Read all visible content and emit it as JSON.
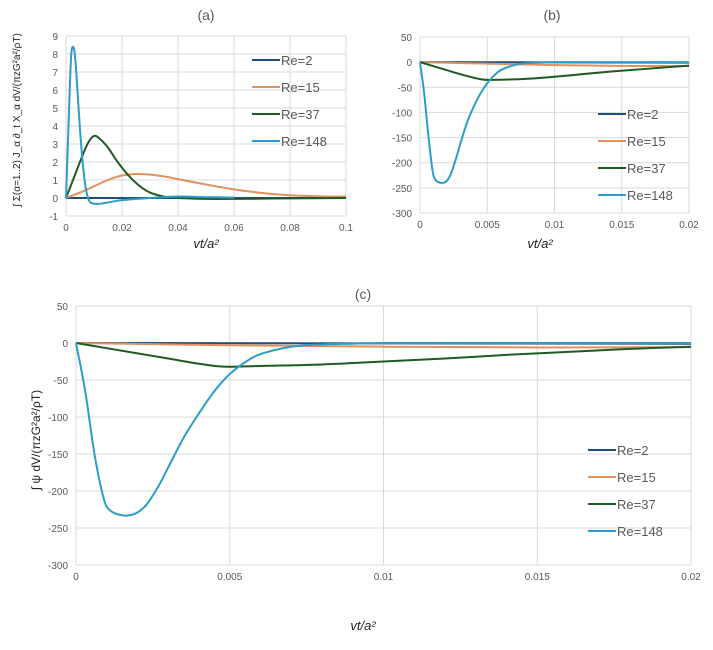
{
  "chart_data": [
    {
      "id": "a",
      "type": "line",
      "title": "(a)",
      "xlabel": "vt/a²",
      "ylabel": "∫ Σ(α=1..2) J_α ∂_t X_α dV/(πzG²a²/ρT)",
      "xlim": [
        0,
        0.1
      ],
      "ylim": [
        -1,
        9
      ],
      "xticks": [
        "0",
        "0.02",
        "0.04",
        "0.06",
        "0.08",
        "0.1"
      ],
      "xtick_values": [
        0,
        0.02,
        0.04,
        0.06,
        0.08,
        0.1
      ],
      "yticks": [
        "-1",
        "0",
        "1",
        "2",
        "3",
        "4",
        "5",
        "6",
        "7",
        "8",
        "9"
      ],
      "ytick_values": [
        -1,
        0,
        1,
        2,
        3,
        4,
        5,
        6,
        7,
        8,
        9
      ],
      "grid": true,
      "legend_position": "top-right",
      "series": [
        {
          "name": "Re=2",
          "color": "#1f4e79",
          "x": [
            0,
            0.02,
            0.05,
            0.1
          ],
          "y": [
            0,
            0,
            0,
            0
          ]
        },
        {
          "name": "Re=15",
          "color": "#e0915e",
          "x": [
            0,
            0.005,
            0.01,
            0.015,
            0.02,
            0.025,
            0.03,
            0.035,
            0.04,
            0.05,
            0.06,
            0.07,
            0.08,
            0.09,
            0.1
          ],
          "y": [
            0,
            0.3,
            0.65,
            1.0,
            1.25,
            1.33,
            1.3,
            1.2,
            1.05,
            0.75,
            0.48,
            0.28,
            0.15,
            0.1,
            0.08
          ]
        },
        {
          "name": "Re=37",
          "color": "#1e5a23",
          "x": [
            0,
            0.003,
            0.006,
            0.008,
            0.01,
            0.012,
            0.015,
            0.018,
            0.022,
            0.026,
            0.03,
            0.035,
            0.04,
            0.05,
            0.06,
            0.08,
            0.1
          ],
          "y": [
            0,
            1.2,
            2.4,
            3.1,
            3.45,
            3.3,
            2.8,
            2.1,
            1.3,
            0.7,
            0.3,
            0.08,
            0.0,
            -0.05,
            -0.05,
            -0.02,
            0
          ]
        },
        {
          "name": "Re=148",
          "color": "#2b9ec7",
          "x": [
            0,
            0.001,
            0.0018,
            0.0025,
            0.0032,
            0.004,
            0.005,
            0.006,
            0.007,
            0.008,
            0.009,
            0.011,
            0.013,
            0.016,
            0.02,
            0.03,
            0.04,
            0.05,
            0.06
          ],
          "y": [
            0,
            4.5,
            7.8,
            8.4,
            7.9,
            6.2,
            3.8,
            1.9,
            0.6,
            -0.05,
            -0.28,
            -0.33,
            -0.3,
            -0.22,
            -0.12,
            0.0,
            0.08,
            0.05,
            0.02
          ]
        }
      ]
    },
    {
      "id": "b",
      "type": "line",
      "title": "(b)",
      "xlabel": "vt/a²",
      "ylabel": "",
      "xlim": [
        0,
        0.02
      ],
      "ylim": [
        -300,
        50
      ],
      "xticks": [
        "0",
        "0.005",
        "0.01",
        "0.015",
        "0.02"
      ],
      "xtick_values": [
        0,
        0.005,
        0.01,
        0.015,
        0.02
      ],
      "yticks": [
        "-300",
        "-250",
        "-200",
        "-150",
        "-100",
        "-50",
        "0",
        "50"
      ],
      "ytick_values": [
        -300,
        -250,
        -200,
        -150,
        -100,
        -50,
        0,
        50
      ],
      "grid": true,
      "legend_position": "bottom-right",
      "series": [
        {
          "name": "Re=2",
          "color": "#1f4e79",
          "x": [
            0,
            0.01,
            0.02
          ],
          "y": [
            0,
            -0.5,
            -1
          ]
        },
        {
          "name": "Re=15",
          "color": "#e0915e",
          "x": [
            0,
            0.005,
            0.01,
            0.015,
            0.02
          ],
          "y": [
            0,
            -3,
            -6,
            -7.5,
            -8
          ]
        },
        {
          "name": "Re=37",
          "color": "#1e5a23",
          "x": [
            0,
            0.001,
            0.002,
            0.003,
            0.004,
            0.0048,
            0.006,
            0.008,
            0.01,
            0.012,
            0.014,
            0.016,
            0.018,
            0.02
          ],
          "y": [
            0,
            -8,
            -16,
            -24,
            -31,
            -35,
            -35,
            -33,
            -29,
            -24,
            -19,
            -15,
            -11,
            -7
          ]
        },
        {
          "name": "Re=148",
          "color": "#2b9ec7",
          "x": [
            0,
            0.0003,
            0.0006,
            0.0009,
            0.0011,
            0.0014,
            0.0017,
            0.002,
            0.0023,
            0.0027,
            0.003,
            0.0035,
            0.004,
            0.0045,
            0.005,
            0.0055,
            0.006,
            0.007,
            0.008,
            0.009,
            0.01,
            0.015,
            0.02
          ],
          "y": [
            0,
            -60,
            -140,
            -210,
            -232,
            -239,
            -240,
            -236,
            -222,
            -190,
            -162,
            -120,
            -88,
            -62,
            -42,
            -27,
            -16,
            -6,
            -2,
            -1,
            0,
            0,
            0
          ]
        }
      ]
    },
    {
      "id": "c",
      "type": "line",
      "title": "(c)",
      "xlabel": "vt/a²",
      "ylabel": "∫ ψ dV/(πzG²a²/ρT)",
      "xlim": [
        0,
        0.02
      ],
      "ylim": [
        -300,
        50
      ],
      "xticks": [
        "0",
        "0.005",
        "0.01",
        "0.015",
        "0.02"
      ],
      "xtick_values": [
        0,
        0.005,
        0.01,
        0.015,
        0.02
      ],
      "yticks": [
        "-300",
        "-250",
        "-200",
        "-150",
        "-100",
        "-50",
        "0",
        "50"
      ],
      "ytick_values": [
        -300,
        -250,
        -200,
        -150,
        -100,
        -50,
        0,
        50
      ],
      "grid": true,
      "legend_position": "bottom-right",
      "series": [
        {
          "name": "Re=2",
          "color": "#1f4e79",
          "x": [
            0,
            0.01,
            0.02
          ],
          "y": [
            0,
            -0.5,
            -1
          ]
        },
        {
          "name": "Re=15",
          "color": "#e0915e",
          "x": [
            0,
            0.005,
            0.01,
            0.015,
            0.02
          ],
          "y": [
            0,
            -3,
            -5,
            -6,
            -5.5
          ]
        },
        {
          "name": "Re=37",
          "color": "#1e5a23",
          "x": [
            0,
            0.001,
            0.002,
            0.003,
            0.004,
            0.0048,
            0.006,
            0.008,
            0.01,
            0.012,
            0.014,
            0.016,
            0.018,
            0.02
          ],
          "y": [
            0,
            -7,
            -14,
            -21,
            -28,
            -32,
            -31,
            -29,
            -25,
            -21,
            -16,
            -12,
            -8,
            -5
          ]
        },
        {
          "name": "Re=148",
          "color": "#2b9ec7",
          "x": [
            0,
            0.0003,
            0.0006,
            0.0009,
            0.0011,
            0.0014,
            0.0017,
            0.002,
            0.0023,
            0.0027,
            0.003,
            0.0035,
            0.004,
            0.0045,
            0.005,
            0.0055,
            0.006,
            0.007,
            0.008,
            0.009,
            0.01,
            0.015,
            0.02
          ],
          "y": [
            0,
            -65,
            -150,
            -210,
            -226,
            -232,
            -233,
            -229,
            -218,
            -192,
            -168,
            -128,
            -95,
            -65,
            -42,
            -26,
            -15,
            -5,
            -2,
            -1,
            0,
            0,
            0
          ]
        }
      ]
    }
  ]
}
